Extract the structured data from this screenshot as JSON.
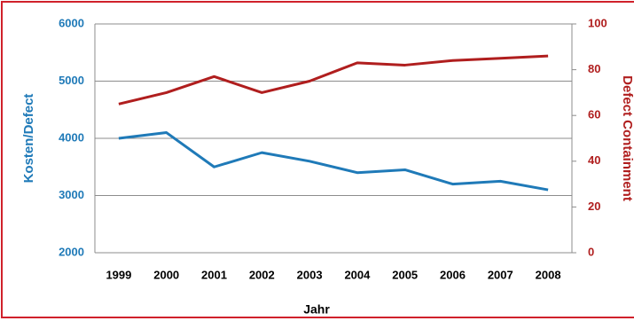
{
  "chart_data": {
    "type": "line",
    "categories": [
      "1999",
      "2000",
      "2001",
      "2002",
      "2003",
      "2004",
      "2005",
      "2006",
      "2007",
      "2008"
    ],
    "series": [
      {
        "name": "Kosten/Defect",
        "color": "#1f7ab8",
        "values": [
          4000,
          4100,
          3500,
          3750,
          3600,
          3400,
          3450,
          3200,
          3250,
          3100
        ]
      },
      {
        "name": "Defect Containment",
        "color": "#b01e1e",
        "axis": "y2",
        "values": [
          65,
          70,
          77,
          70,
          75,
          83,
          82,
          84,
          85,
          86
        ]
      }
    ],
    "x_label": "Jahr",
    "y_label": "Kosten/Defect",
    "y2_label": "Defect Containment",
    "ylim": [
      2000,
      6000
    ],
    "yticks": [
      2000,
      3000,
      4000,
      5000,
      6000
    ],
    "y2lim": [
      0,
      100
    ],
    "y2ticks": [
      0,
      20,
      40,
      60,
      80,
      100
    ],
    "grid": true
  }
}
